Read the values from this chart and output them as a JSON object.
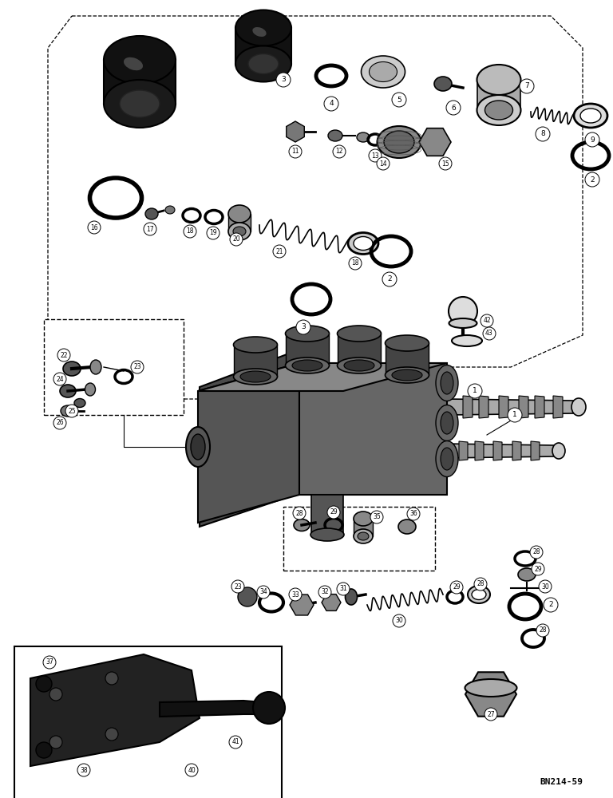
{
  "figure_id": "BN214-59",
  "bg_color": "#ffffff",
  "fig_width": 7.68,
  "fig_height": 10.0,
  "dpi": 100,
  "figid_fontsize": 8
}
